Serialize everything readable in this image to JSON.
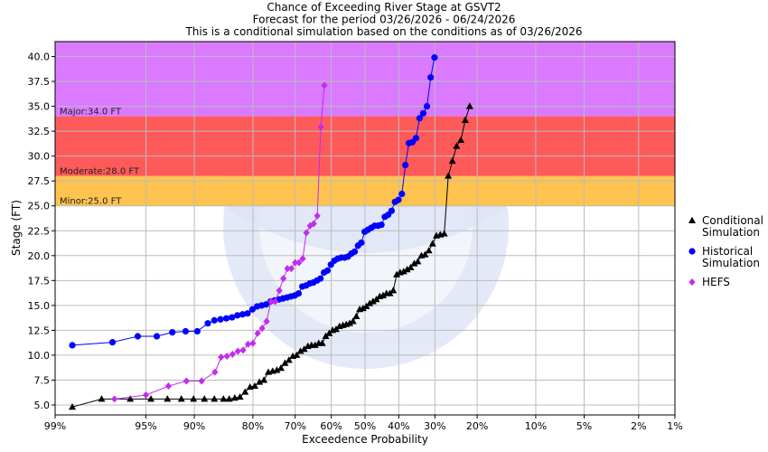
{
  "chart_data": {
    "type": "scatter",
    "title_lines": [
      "Chance of Exceeding River Stage at GSVT2",
      "Forecast for the period 03/26/2026 - 06/24/2026",
      "This is a conditional simulation based on the conditions as of 03/26/2026"
    ],
    "xlabel": "Exceedence Probability",
    "ylabel": "Stage (FT)",
    "x_scale": "probit",
    "x_direction": "descending",
    "x_tick_values": [
      99,
      95,
      90,
      80,
      70,
      60,
      50,
      40,
      30,
      20,
      10,
      5,
      2,
      1
    ],
    "x_tick_labels": [
      "99%",
      "95%",
      "90%",
      "80%",
      "70%",
      "60%",
      "50%",
      "40%",
      "30%",
      "20%",
      "10%",
      "5%",
      "2%",
      "1%"
    ],
    "ylim": [
      4.0,
      41.5
    ],
    "y_ticks": [
      5.0,
      7.5,
      10.0,
      12.5,
      15.0,
      17.5,
      20.0,
      22.5,
      25.0,
      27.5,
      30.0,
      32.5,
      35.0,
      37.5,
      40.0
    ],
    "y_tick_labels": [
      "5.0",
      "7.5",
      "10.0",
      "12.5",
      "15.0",
      "17.5",
      "20.0",
      "22.5",
      "25.0",
      "27.5",
      "30.0",
      "32.5",
      "35.0",
      "37.5",
      "40.0"
    ],
    "grid": true,
    "legend_position": "right",
    "flood_bands": [
      {
        "label": "Minor:25.0 FT",
        "from": 25.0,
        "to": 28.0,
        "color": "#ffc34f"
      },
      {
        "label": "Moderate:28.0 FT",
        "from": 28.0,
        "to": 34.0,
        "color": "#ff5a5a"
      },
      {
        "label": "Major:34.0 FT",
        "from": 34.0,
        "to": 41.5,
        "color": "#d97aff"
      }
    ],
    "series": [
      {
        "name": "Conditional Simulation",
        "legend_lines": [
          "Conditional",
          "Simulation"
        ],
        "color": "#000000",
        "marker": "triangle",
        "points": [
          [
            98.6,
            4.8
          ],
          [
            97.6,
            5.6
          ],
          [
            96.1,
            5.6
          ],
          [
            94.6,
            5.6
          ],
          [
            93.1,
            5.6
          ],
          [
            91.6,
            5.6
          ],
          [
            90.1,
            5.6
          ],
          [
            88.6,
            5.6
          ],
          [
            87.1,
            5.6
          ],
          [
            85.6,
            5.6
          ],
          [
            84.6,
            5.6
          ],
          [
            83.6,
            5.7
          ],
          [
            82.6,
            5.8
          ],
          [
            81.6,
            6.3
          ],
          [
            80.6,
            6.8
          ],
          [
            79.6,
            6.9
          ],
          [
            78.6,
            7.3
          ],
          [
            77.6,
            7.5
          ],
          [
            76.6,
            8.3
          ],
          [
            75.6,
            8.4
          ],
          [
            74.6,
            8.5
          ],
          [
            73.6,
            8.7
          ],
          [
            72.6,
            9.2
          ],
          [
            71.6,
            9.5
          ],
          [
            70.6,
            9.9
          ],
          [
            69.6,
            10.0
          ],
          [
            68.6,
            10.4
          ],
          [
            67.6,
            10.6
          ],
          [
            66.6,
            10.9
          ],
          [
            65.6,
            11.0
          ],
          [
            64.6,
            11.0
          ],
          [
            63.6,
            11.2
          ],
          [
            62.6,
            11.2
          ],
          [
            61.6,
            11.9
          ],
          [
            60.6,
            12.2
          ],
          [
            59.6,
            12.5
          ],
          [
            58.6,
            12.6
          ],
          [
            57.6,
            12.9
          ],
          [
            56.6,
            13.0
          ],
          [
            55.6,
            13.1
          ],
          [
            54.6,
            13.2
          ],
          [
            53.6,
            13.4
          ],
          [
            52.6,
            13.9
          ],
          [
            51.6,
            14.6
          ],
          [
            50.6,
            14.7
          ],
          [
            49.6,
            14.9
          ],
          [
            48.6,
            15.2
          ],
          [
            47.6,
            15.4
          ],
          [
            46.6,
            15.6
          ],
          [
            45.6,
            15.9
          ],
          [
            44.6,
            16.0
          ],
          [
            43.6,
            16.2
          ],
          [
            42.6,
            16.2
          ],
          [
            41.6,
            16.5
          ],
          [
            40.6,
            18.1
          ],
          [
            39.6,
            18.3
          ],
          [
            38.6,
            18.4
          ],
          [
            37.6,
            18.6
          ],
          [
            36.6,
            18.8
          ],
          [
            35.6,
            19.2
          ],
          [
            34.6,
            19.4
          ],
          [
            33.6,
            20.0
          ],
          [
            32.6,
            20.1
          ],
          [
            31.6,
            20.5
          ],
          [
            30.6,
            21.2
          ],
          [
            29.6,
            22.0
          ],
          [
            28.6,
            22.1
          ],
          [
            27.6,
            22.2
          ],
          [
            26.6,
            28.0
          ],
          [
            25.6,
            29.5
          ],
          [
            24.6,
            31.0
          ],
          [
            23.6,
            31.6
          ],
          [
            22.6,
            33.6
          ],
          [
            21.6,
            35.0
          ]
        ]
      },
      {
        "name": "Historical Simulation",
        "legend_lines": [
          "Historical",
          "Simulation"
        ],
        "color": "#0000ff",
        "marker": "circle",
        "points": [
          [
            98.6,
            11.0
          ],
          [
            97.1,
            11.3
          ],
          [
            95.6,
            11.9
          ],
          [
            94.1,
            11.9
          ],
          [
            92.6,
            12.3
          ],
          [
            91.1,
            12.4
          ],
          [
            89.6,
            12.4
          ],
          [
            88.1,
            13.2
          ],
          [
            87.1,
            13.5
          ],
          [
            86.1,
            13.6
          ],
          [
            85.1,
            13.7
          ],
          [
            84.1,
            13.8
          ],
          [
            83.1,
            14.0
          ],
          [
            82.1,
            14.1
          ],
          [
            81.1,
            14.2
          ],
          [
            80.1,
            14.6
          ],
          [
            79.1,
            14.9
          ],
          [
            78.1,
            15.0
          ],
          [
            77.1,
            15.1
          ],
          [
            76.1,
            15.4
          ],
          [
            75.1,
            15.5
          ],
          [
            74.1,
            15.6
          ],
          [
            73.1,
            15.7
          ],
          [
            72.1,
            15.8
          ],
          [
            71.1,
            15.9
          ],
          [
            70.1,
            16.0
          ],
          [
            69.1,
            16.2
          ],
          [
            68.1,
            16.9
          ],
          [
            67.1,
            17.0
          ],
          [
            66.1,
            17.2
          ],
          [
            65.1,
            17.3
          ],
          [
            64.1,
            17.5
          ],
          [
            63.1,
            17.7
          ],
          [
            62.1,
            18.3
          ],
          [
            61.1,
            18.5
          ],
          [
            60.1,
            19.1
          ],
          [
            59.1,
            19.5
          ],
          [
            58.1,
            19.7
          ],
          [
            57.1,
            19.8
          ],
          [
            56.1,
            19.8
          ],
          [
            55.1,
            19.9
          ],
          [
            54.1,
            20.2
          ],
          [
            53.1,
            20.4
          ],
          [
            52.1,
            21.0
          ],
          [
            51.1,
            21.3
          ],
          [
            50.1,
            22.4
          ],
          [
            49.1,
            22.6
          ],
          [
            48.1,
            22.8
          ],
          [
            47.1,
            23.0
          ],
          [
            46.1,
            23.0
          ],
          [
            45.1,
            23.1
          ],
          [
            44.1,
            23.9
          ],
          [
            43.1,
            24.1
          ],
          [
            42.1,
            24.5
          ],
          [
            41.1,
            25.4
          ],
          [
            40.1,
            25.6
          ],
          [
            39.1,
            26.2
          ],
          [
            38.1,
            29.1
          ],
          [
            37.1,
            31.3
          ],
          [
            36.1,
            31.4
          ],
          [
            35.1,
            31.8
          ],
          [
            34.1,
            33.8
          ],
          [
            33.1,
            34.3
          ],
          [
            32.1,
            35.0
          ],
          [
            31.1,
            37.9
          ],
          [
            30.1,
            39.9
          ]
        ]
      },
      {
        "name": "HEFS",
        "legend_lines": [
          "HEFS"
        ],
        "color": "#c12cf0",
        "marker": "diamond",
        "points": [
          [
            97.0,
            5.6
          ],
          [
            95.0,
            6.0
          ],
          [
            93.0,
            6.9
          ],
          [
            91.0,
            7.4
          ],
          [
            89.0,
            7.4
          ],
          [
            87.0,
            8.3
          ],
          [
            86.0,
            9.8
          ],
          [
            85.0,
            9.9
          ],
          [
            84.0,
            10.1
          ],
          [
            83.0,
            10.4
          ],
          [
            82.0,
            10.5
          ],
          [
            81.0,
            11.1
          ],
          [
            80.0,
            11.2
          ],
          [
            79.0,
            12.2
          ],
          [
            78.0,
            12.7
          ],
          [
            77.0,
            13.4
          ],
          [
            76.0,
            15.4
          ],
          [
            75.0,
            15.4
          ],
          [
            74.0,
            16.5
          ],
          [
            73.0,
            17.7
          ],
          [
            72.0,
            18.7
          ],
          [
            71.0,
            18.7
          ],
          [
            70.0,
            19.3
          ],
          [
            69.0,
            19.3
          ],
          [
            68.0,
            19.7
          ],
          [
            67.0,
            22.3
          ],
          [
            66.0,
            23.0
          ],
          [
            65.0,
            23.2
          ],
          [
            64.0,
            24.0
          ],
          [
            63.0,
            32.9
          ],
          [
            62.0,
            37.1
          ]
        ]
      }
    ]
  }
}
